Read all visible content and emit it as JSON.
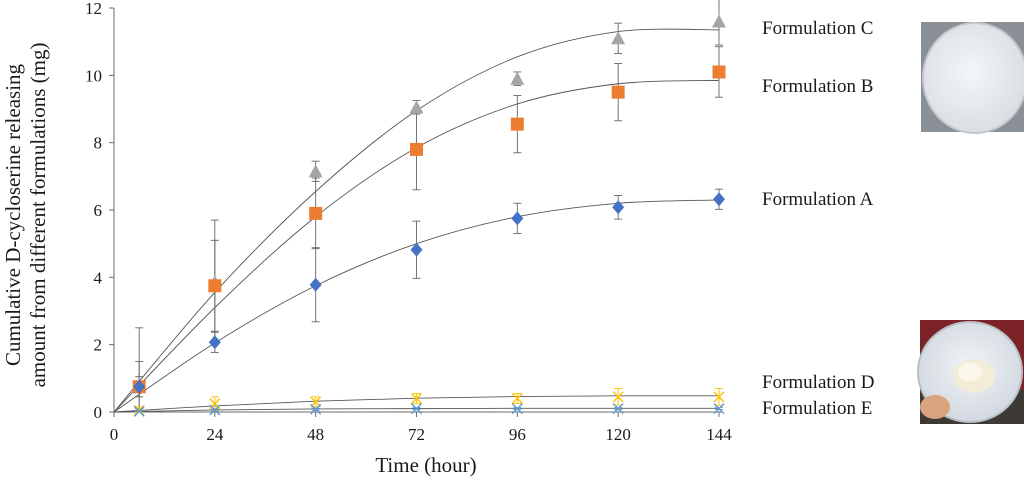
{
  "chart_data": {
    "type": "scatter",
    "xlabel": "Time (hour)",
    "ylabel_line1": "Cumulative D-cycloserine releasing",
    "ylabel_line2": "amount from different formulations (mg)",
    "xlim": [
      0,
      144
    ],
    "ylim": [
      0,
      12
    ],
    "xticks": [
      0,
      24,
      48,
      72,
      96,
      120,
      144
    ],
    "yticks": [
      0,
      2,
      4,
      6,
      8,
      10,
      12
    ],
    "grid": false,
    "legend_placement": "right",
    "series": [
      {
        "name": "Formulation C",
        "marker": "triangle",
        "color": "#a6a6a6",
        "x": [
          6,
          24,
          48,
          72,
          96,
          120,
          144
        ],
        "y": [
          0.8,
          3.85,
          7.15,
          9.05,
          9.9,
          11.1,
          11.6
        ],
        "err": [
          0.7,
          1.85,
          0.3,
          0.2,
          0.2,
          0.45,
          0.7
        ],
        "fit": [
          0,
          3.55,
          6.55,
          8.95,
          10.55,
          11.3,
          11.35
        ]
      },
      {
        "name": "Formulation B",
        "marker": "square",
        "color": "#ed7d31",
        "x": [
          6,
          24,
          48,
          72,
          96,
          120,
          144
        ],
        "y": [
          0.75,
          3.75,
          5.9,
          7.8,
          8.55,
          9.5,
          10.1
        ],
        "err": [
          1.75,
          1.35,
          1.05,
          1.2,
          0.85,
          0.85,
          0.75
        ],
        "fit": [
          0,
          3.1,
          5.8,
          7.85,
          9.15,
          9.75,
          9.85
        ]
      },
      {
        "name": "Formulation A",
        "marker": "diamond",
        "color": "#4472c4",
        "x": [
          6,
          24,
          48,
          72,
          96,
          120,
          144
        ],
        "y": [
          0.75,
          2.07,
          3.78,
          4.82,
          5.75,
          6.08,
          6.32
        ],
        "err": [
          0.3,
          0.3,
          1.1,
          0.85,
          0.45,
          0.35,
          0.3
        ],
        "fit": [
          0,
          2.05,
          3.75,
          5.0,
          5.8,
          6.2,
          6.3
        ]
      },
      {
        "name": "Formulation D",
        "marker": "x",
        "color": "#ffc000",
        "x": [
          6,
          24,
          48,
          72,
          96,
          120,
          144
        ],
        "y": [
          0.05,
          0.25,
          0.3,
          0.4,
          0.4,
          0.45,
          0.45
        ],
        "err": [
          0.1,
          0.2,
          0.15,
          0.15,
          0.15,
          0.25,
          0.25
        ],
        "fit": [
          0,
          0.18,
          0.32,
          0.41,
          0.46,
          0.48,
          0.48
        ]
      },
      {
        "name": "Formulation E",
        "marker": "x",
        "color": "#5b9bd5",
        "x": [
          6,
          24,
          48,
          72,
          96,
          120,
          144
        ],
        "y": [
          0.02,
          0.06,
          0.08,
          0.1,
          0.1,
          0.1,
          0.1
        ],
        "err": [
          0.03,
          0.03,
          0.03,
          0.03,
          0.03,
          0.03,
          0.03
        ],
        "fit": [
          0,
          0.06,
          0.09,
          0.1,
          0.11,
          0.11,
          0.11
        ]
      }
    ]
  },
  "photos": {
    "top_caption": "",
    "bottom_caption": ""
  }
}
